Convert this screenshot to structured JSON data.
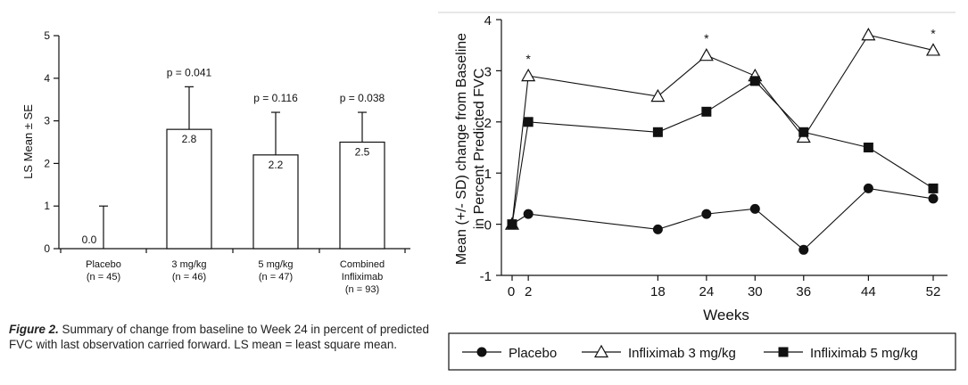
{
  "caption": {
    "label": "Figure 2.",
    "text": "Summary of change from baseline to Week 24 in percent of predicted FVC with last observation carried forward. LS mean = least square mean."
  },
  "chart_data": [
    {
      "type": "bar",
      "ylabel": "LS Mean ± SE",
      "ylim": [
        0,
        5
      ],
      "yticks": [
        "0",
        "1",
        "2",
        "3",
        "4",
        "5"
      ],
      "categories": [
        {
          "name": "Placebo",
          "n": "(n = 45)"
        },
        {
          "name": "3 mg/kg",
          "n": "(n = 46)"
        },
        {
          "name": "5 mg/kg",
          "n": "(n = 47)"
        },
        {
          "name": "Combined Infliximab",
          "n": "(n = 93)"
        }
      ],
      "values": [
        0.0,
        2.8,
        2.2,
        2.5
      ],
      "value_labels": [
        "0.0",
        "2.8",
        "2.2",
        "2.5"
      ],
      "se": [
        1.0,
        1.0,
        1.0,
        0.7
      ],
      "pvalues": [
        "",
        "p = 0.041",
        "p = 0.116",
        "p = 0.038"
      ]
    },
    {
      "type": "line",
      "xlabel": "Weeks",
      "ylabel": "Mean (+/- SD) change from Baseline in Percent Predicted FVC",
      "ylim": [
        -1,
        4
      ],
      "yticks": [
        "-1",
        "0",
        "1",
        "2",
        "3",
        "4"
      ],
      "x": [
        0,
        2,
        18,
        24,
        30,
        36,
        44,
        52
      ],
      "xticks": [
        "0",
        "2",
        "18",
        "24",
        "30",
        "36",
        "44",
        "52"
      ],
      "series": [
        {
          "name": "Placebo",
          "marker": "circle",
          "values": [
            0,
            0.2,
            -0.1,
            0.2,
            0.3,
            -0.5,
            0.7,
            0.5
          ]
        },
        {
          "name": "Infliximab 3 mg/kg",
          "marker": "triangle-open",
          "values": [
            0,
            2.9,
            2.5,
            3.3,
            2.9,
            1.7,
            3.7,
            3.4
          ]
        },
        {
          "name": "Infliximab 5 mg/kg",
          "marker": "square",
          "values": [
            0,
            2.0,
            1.8,
            2.2,
            2.8,
            1.8,
            1.5,
            0.7
          ]
        }
      ],
      "significance": [
        {
          "x": 2,
          "label": "*"
        },
        {
          "x": 24,
          "label": "*"
        },
        {
          "x": 52,
          "label": "*"
        }
      ],
      "legend": {
        "position": "bottom"
      }
    }
  ]
}
